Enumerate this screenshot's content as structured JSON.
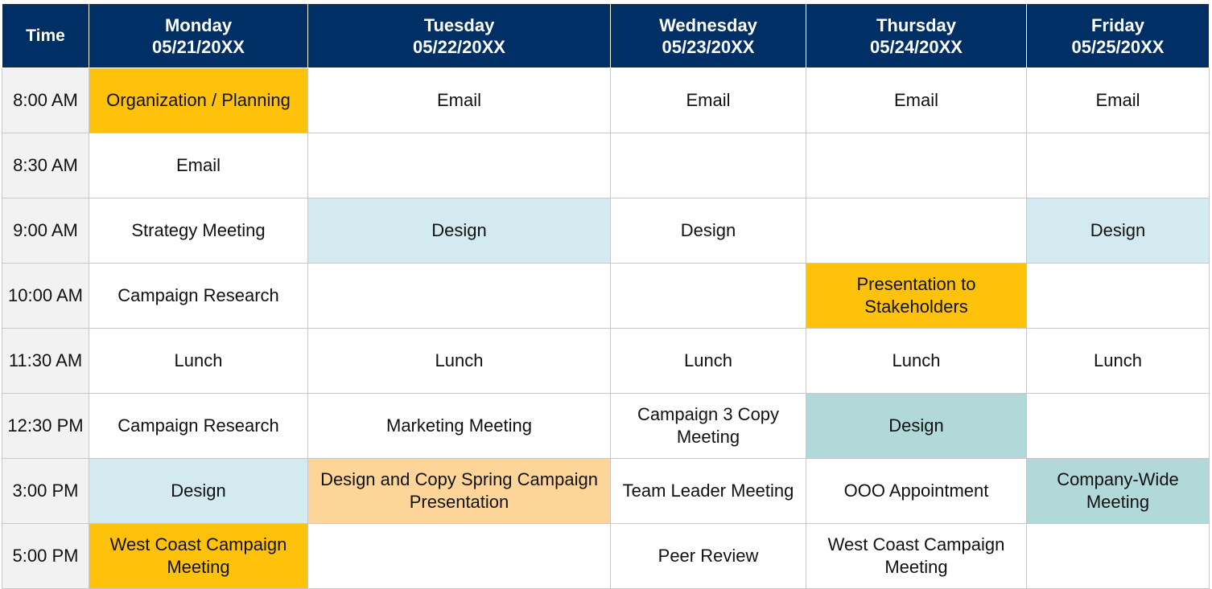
{
  "colors": {
    "header_bg": "#002f66",
    "orange": "#ffc20a",
    "light_blue": "#d2eaf0",
    "peach": "#fdd598",
    "teal": "#b1d9d9",
    "time_bg": "#f2f2f2"
  },
  "header": {
    "time_label": "Time",
    "days": [
      {
        "name": "Monday",
        "date": "05/21/20XX"
      },
      {
        "name": "Tuesday",
        "date": "05/22/20XX"
      },
      {
        "name": "Wednesday",
        "date": "05/23/20XX"
      },
      {
        "name": "Thursday",
        "date": "05/24/20XX"
      },
      {
        "name": "Friday",
        "date": "05/25/20XX"
      }
    ]
  },
  "rows": [
    {
      "time": "8:00 AM",
      "cells": [
        {
          "text": "Organization / Planning",
          "color": "#ffc20a"
        },
        {
          "text": "Email",
          "color": ""
        },
        {
          "text": "Email",
          "color": ""
        },
        {
          "text": "Email",
          "color": ""
        },
        {
          "text": "Email",
          "color": ""
        }
      ]
    },
    {
      "time": "8:30 AM",
      "cells": [
        {
          "text": "Email",
          "color": ""
        },
        {
          "text": "",
          "color": ""
        },
        {
          "text": "",
          "color": ""
        },
        {
          "text": "",
          "color": ""
        },
        {
          "text": "",
          "color": ""
        }
      ]
    },
    {
      "time": "9:00 AM",
      "cells": [
        {
          "text": "Strategy Meeting",
          "color": ""
        },
        {
          "text": "Design",
          "color": "#d2eaf0"
        },
        {
          "text": "Design",
          "color": ""
        },
        {
          "text": "",
          "color": ""
        },
        {
          "text": "Design",
          "color": "#d2eaf0"
        }
      ]
    },
    {
      "time": "10:00 AM",
      "cells": [
        {
          "text": "Campaign Research",
          "color": ""
        },
        {
          "text": "",
          "color": ""
        },
        {
          "text": "",
          "color": ""
        },
        {
          "text": "Presentation to Stakeholders",
          "color": "#ffc20a"
        },
        {
          "text": "",
          "color": ""
        }
      ]
    },
    {
      "time": "11:30 AM",
      "cells": [
        {
          "text": "Lunch",
          "color": ""
        },
        {
          "text": "Lunch",
          "color": ""
        },
        {
          "text": "Lunch",
          "color": ""
        },
        {
          "text": "Lunch",
          "color": ""
        },
        {
          "text": "Lunch",
          "color": ""
        }
      ]
    },
    {
      "time": "12:30 PM",
      "cells": [
        {
          "text": "Campaign Research",
          "color": ""
        },
        {
          "text": "Marketing Meeting",
          "color": ""
        },
        {
          "text": "Campaign 3 Copy Meeting",
          "color": ""
        },
        {
          "text": "Design",
          "color": "#b1d9d9"
        },
        {
          "text": "",
          "color": ""
        }
      ]
    },
    {
      "time": "3:00 PM",
      "cells": [
        {
          "text": "Design",
          "color": "#d2eaf0"
        },
        {
          "text": "Design and Copy Spring Campaign Presentation",
          "color": "#fdd598"
        },
        {
          "text": "Team Leader Meeting",
          "color": ""
        },
        {
          "text": "OOO Appointment",
          "color": ""
        },
        {
          "text": "Company-Wide Meeting",
          "color": "#b1d9d9"
        }
      ]
    },
    {
      "time": "5:00 PM",
      "cells": [
        {
          "text": "West Coast Campaign Meeting",
          "color": "#ffc20a"
        },
        {
          "text": "",
          "color": ""
        },
        {
          "text": "Peer Review",
          "color": ""
        },
        {
          "text": "West Coast Campaign Meeting",
          "color": ""
        },
        {
          "text": "",
          "color": ""
        }
      ]
    }
  ]
}
